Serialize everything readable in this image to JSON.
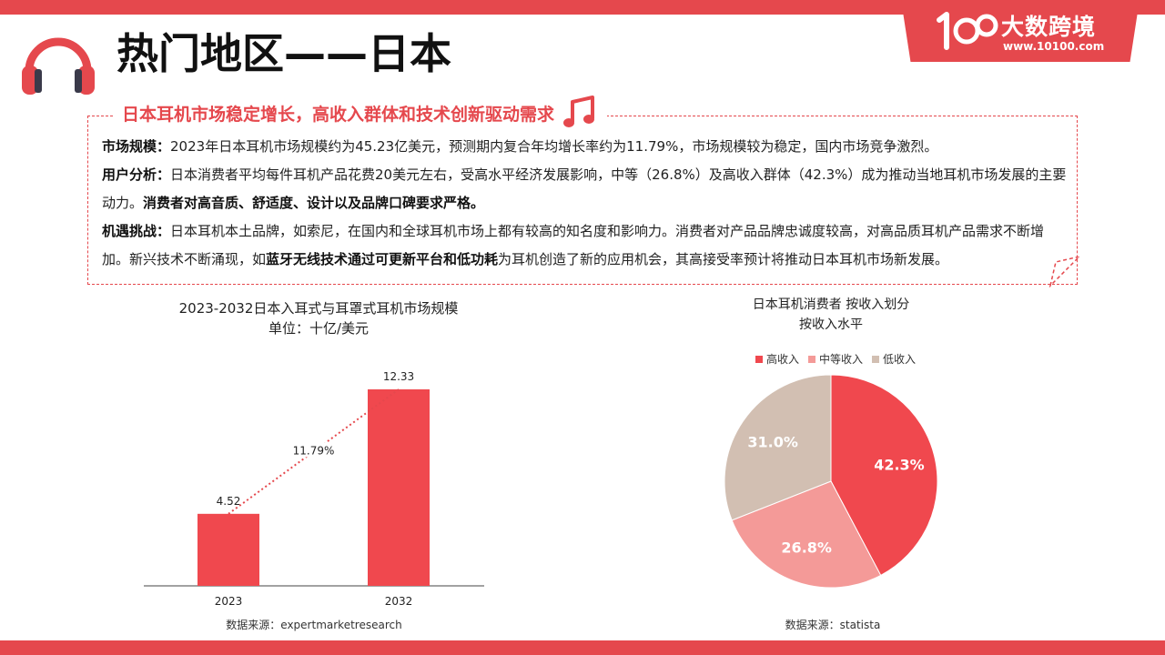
{
  "brand": {
    "logo_text": "大数跨境",
    "url": "www.10100.com",
    "accent": "#e5484d"
  },
  "page": {
    "title": "热门地区——日本",
    "subtitle": "日本耳机市场稳定增长，高收入群体和技术创新驱动需求",
    "icons": [
      "headphones-icon",
      "music-note-icon"
    ]
  },
  "paragraphs": {
    "market": {
      "label": "市场规模：",
      "text": "2023年日本耳机市场规模约为45.23亿美元，预测期内复合年均增长率约为11.79%，市场规模较为稳定，国内市场竞争激烈。"
    },
    "user": {
      "label": "用户分析：",
      "text": "日本消费者平均每件耳机产品花费20美元左右，受高水平经济发展影响，中等（26.8%）及高收入群体（42.3%）成为推动当地耳机市场发展的主要动力。",
      "bold": "消费者对高音质、舒适度、设计以及品牌口碑要求严格。"
    },
    "opportunity": {
      "label": "机遇挑战：",
      "text1": "日本耳机本土品牌，如索尼，在国内和全球耳机市场上都有较高的知名度和影响力。消费者对产品品牌忠诚度较高，对高品质耳机产品需求不断增加。新兴技术不断涌现，如",
      "bold": "蓝牙无线技术通过可更新平台和低功耗",
      "text2": "为耳机创造了新的应用机会，其高接受率预计将推动日本耳机市场新发展。"
    }
  },
  "chart_data": [
    {
      "type": "bar",
      "title": "2023-2032日本入耳式与耳罩式耳机市场规模",
      "subtitle": "单位：十亿/美元",
      "categories": [
        "2023",
        "2032"
      ],
      "values": [
        4.52,
        12.33
      ],
      "value_labels": [
        "4.52",
        "12.33"
      ],
      "growth_label": "11.79%",
      "color": "#f0484e",
      "source": "数据来源：expertmarketresearch"
    },
    {
      "type": "pie",
      "title": "日本耳机消费者 按收入划分",
      "subtitle": "按收入水平",
      "legend_position": "top",
      "slices": [
        {
          "name": "高收入",
          "value": 42.3,
          "label": "42.3%",
          "color": "#f0484e"
        },
        {
          "name": "中等收入",
          "value": 26.8,
          "label": "26.8%",
          "color": "#f49a98"
        },
        {
          "name": "低收入",
          "value": 31.0,
          "label": "31.0%",
          "color": "#d2bfb2"
        }
      ],
      "source": "数据来源：statista"
    }
  ]
}
